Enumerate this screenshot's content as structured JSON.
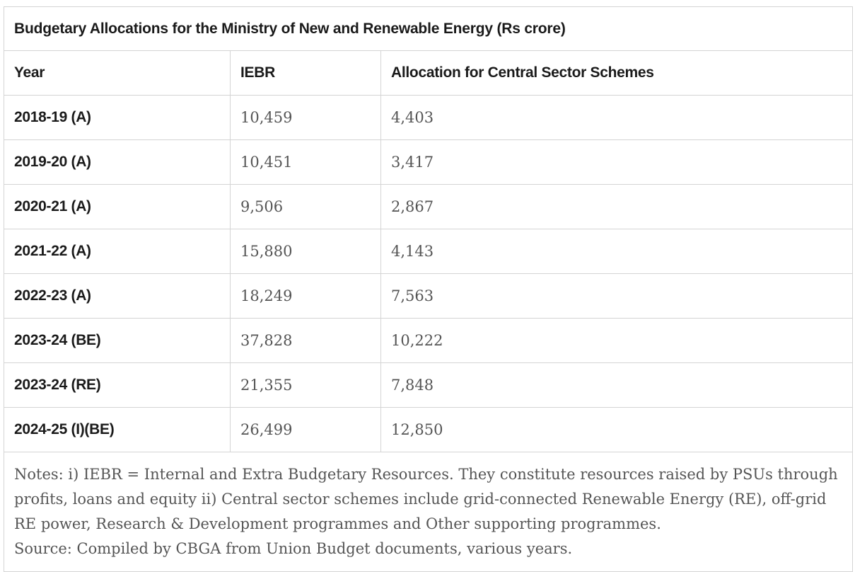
{
  "table": {
    "title": "Budgetary Allocations for the Ministry of New and Renewable Energy (Rs crore)",
    "columns": [
      "Year",
      "IEBR",
      "Allocation for Central Sector Schemes"
    ],
    "rows": [
      {
        "year": "2018-19 (A)",
        "iebr": "10,459",
        "allocation": "4,403"
      },
      {
        "year": "2019-20 (A)",
        "iebr": "10,451",
        "allocation": "3,417"
      },
      {
        "year": "2020-21 (A)",
        "iebr": "9,506",
        "allocation": "2,867"
      },
      {
        "year": "2021-22 (A)",
        "iebr": "15,880",
        "allocation": "4,143"
      },
      {
        "year": "2022-23 (A)",
        "iebr": "18,249",
        "allocation": "7,563"
      },
      {
        "year": "2023-24 (BE)",
        "iebr": "37,828",
        "allocation": "10,222"
      },
      {
        "year": "2023-24 (RE)",
        "iebr": "21,355",
        "allocation": "7,848"
      },
      {
        "year": "2024-25 (I)(BE)",
        "iebr": "26,499",
        "allocation": "12,850"
      }
    ],
    "notes": "Notes: i) IEBR = Internal and Extra Budgetary Resources. They constitute resources raised by PSUs through profits, loans and equity ii) Central sector schemes include grid-connected Renewable Energy (RE), off-grid RE power, Research & Development programmes and Other supporting programmes.",
    "source": "Source: Compiled by CBGA from Union Budget documents, various years."
  }
}
